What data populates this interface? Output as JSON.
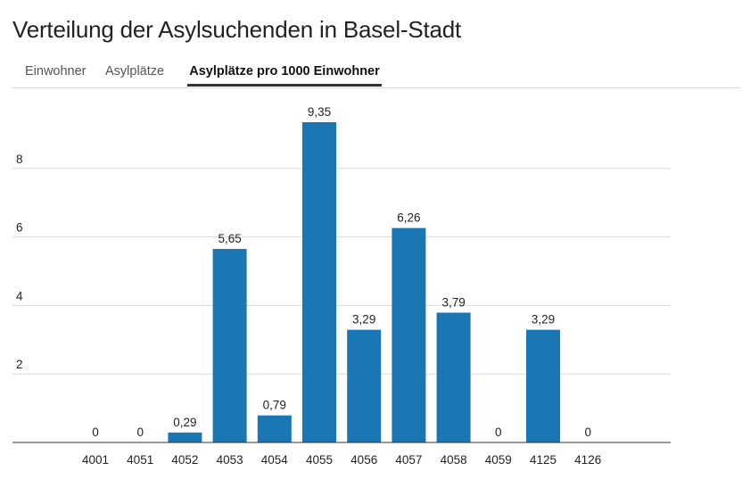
{
  "title": "Verteilung der Asylsuchenden in Basel-Stadt",
  "tabs": [
    {
      "label": "Einwohner",
      "active": false
    },
    {
      "label": "Asylplätze",
      "active": false
    },
    {
      "label": "Asylplätze pro 1000 Einwohner",
      "active": true
    }
  ],
  "colors": {
    "bar": "#1a77b4",
    "gridline": "#dcdcdc"
  },
  "chart_data": {
    "type": "bar",
    "title": "",
    "xlabel": "",
    "ylabel": "",
    "categories": [
      "4001",
      "4051",
      "4052",
      "4053",
      "4054",
      "4055",
      "4056",
      "4057",
      "4058",
      "4059",
      "4125",
      "4126"
    ],
    "values": [
      0,
      0,
      0.29,
      5.65,
      0.79,
      9.35,
      3.29,
      6.26,
      3.79,
      0,
      3.29,
      0
    ],
    "value_labels": [
      "0",
      "0",
      "0,29",
      "5,65",
      "0,79",
      "9,35",
      "3,29",
      "6,26",
      "3,79",
      "0",
      "3,29",
      "0"
    ],
    "yticks": [
      2,
      4,
      6,
      8
    ],
    "ylim": [
      0,
      10
    ],
    "grid": true,
    "legend": "none"
  }
}
